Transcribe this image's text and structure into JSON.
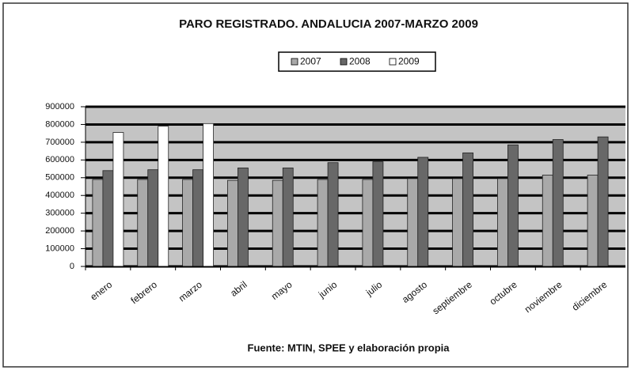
{
  "chart_data": {
    "type": "bar",
    "title": "PARO REGISTRADO. ANDALUCIA 2007-MARZO 2009",
    "source": "Fuente: MTIN,  SPEE y elaboración propia",
    "categories": [
      "enero",
      "febrero",
      "marzo",
      "abril",
      "mayo",
      "junio",
      "julio",
      "agosto",
      "septiembre",
      "octubre",
      "noviembre",
      "diciembre"
    ],
    "series": [
      {
        "name": "2007",
        "color": "#a9a9a9",
        "values": [
          490000,
          490000,
          490000,
          485000,
          485000,
          490000,
          490000,
          495000,
          495000,
          495000,
          515000,
          515000
        ]
      },
      {
        "name": "2008",
        "color": "#686868",
        "values": [
          540000,
          545000,
          545000,
          555000,
          555000,
          585000,
          590000,
          615000,
          640000,
          685000,
          715000,
          730000
        ]
      },
      {
        "name": "2009",
        "color": "#ffffff",
        "values": [
          755000,
          790000,
          805000,
          null,
          null,
          null,
          null,
          null,
          null,
          null,
          null,
          null
        ]
      }
    ],
    "ylim": [
      0,
      900000
    ],
    "yticks": [
      0,
      100000,
      200000,
      300000,
      400000,
      500000,
      600000,
      700000,
      800000,
      900000
    ],
    "grid": true
  }
}
